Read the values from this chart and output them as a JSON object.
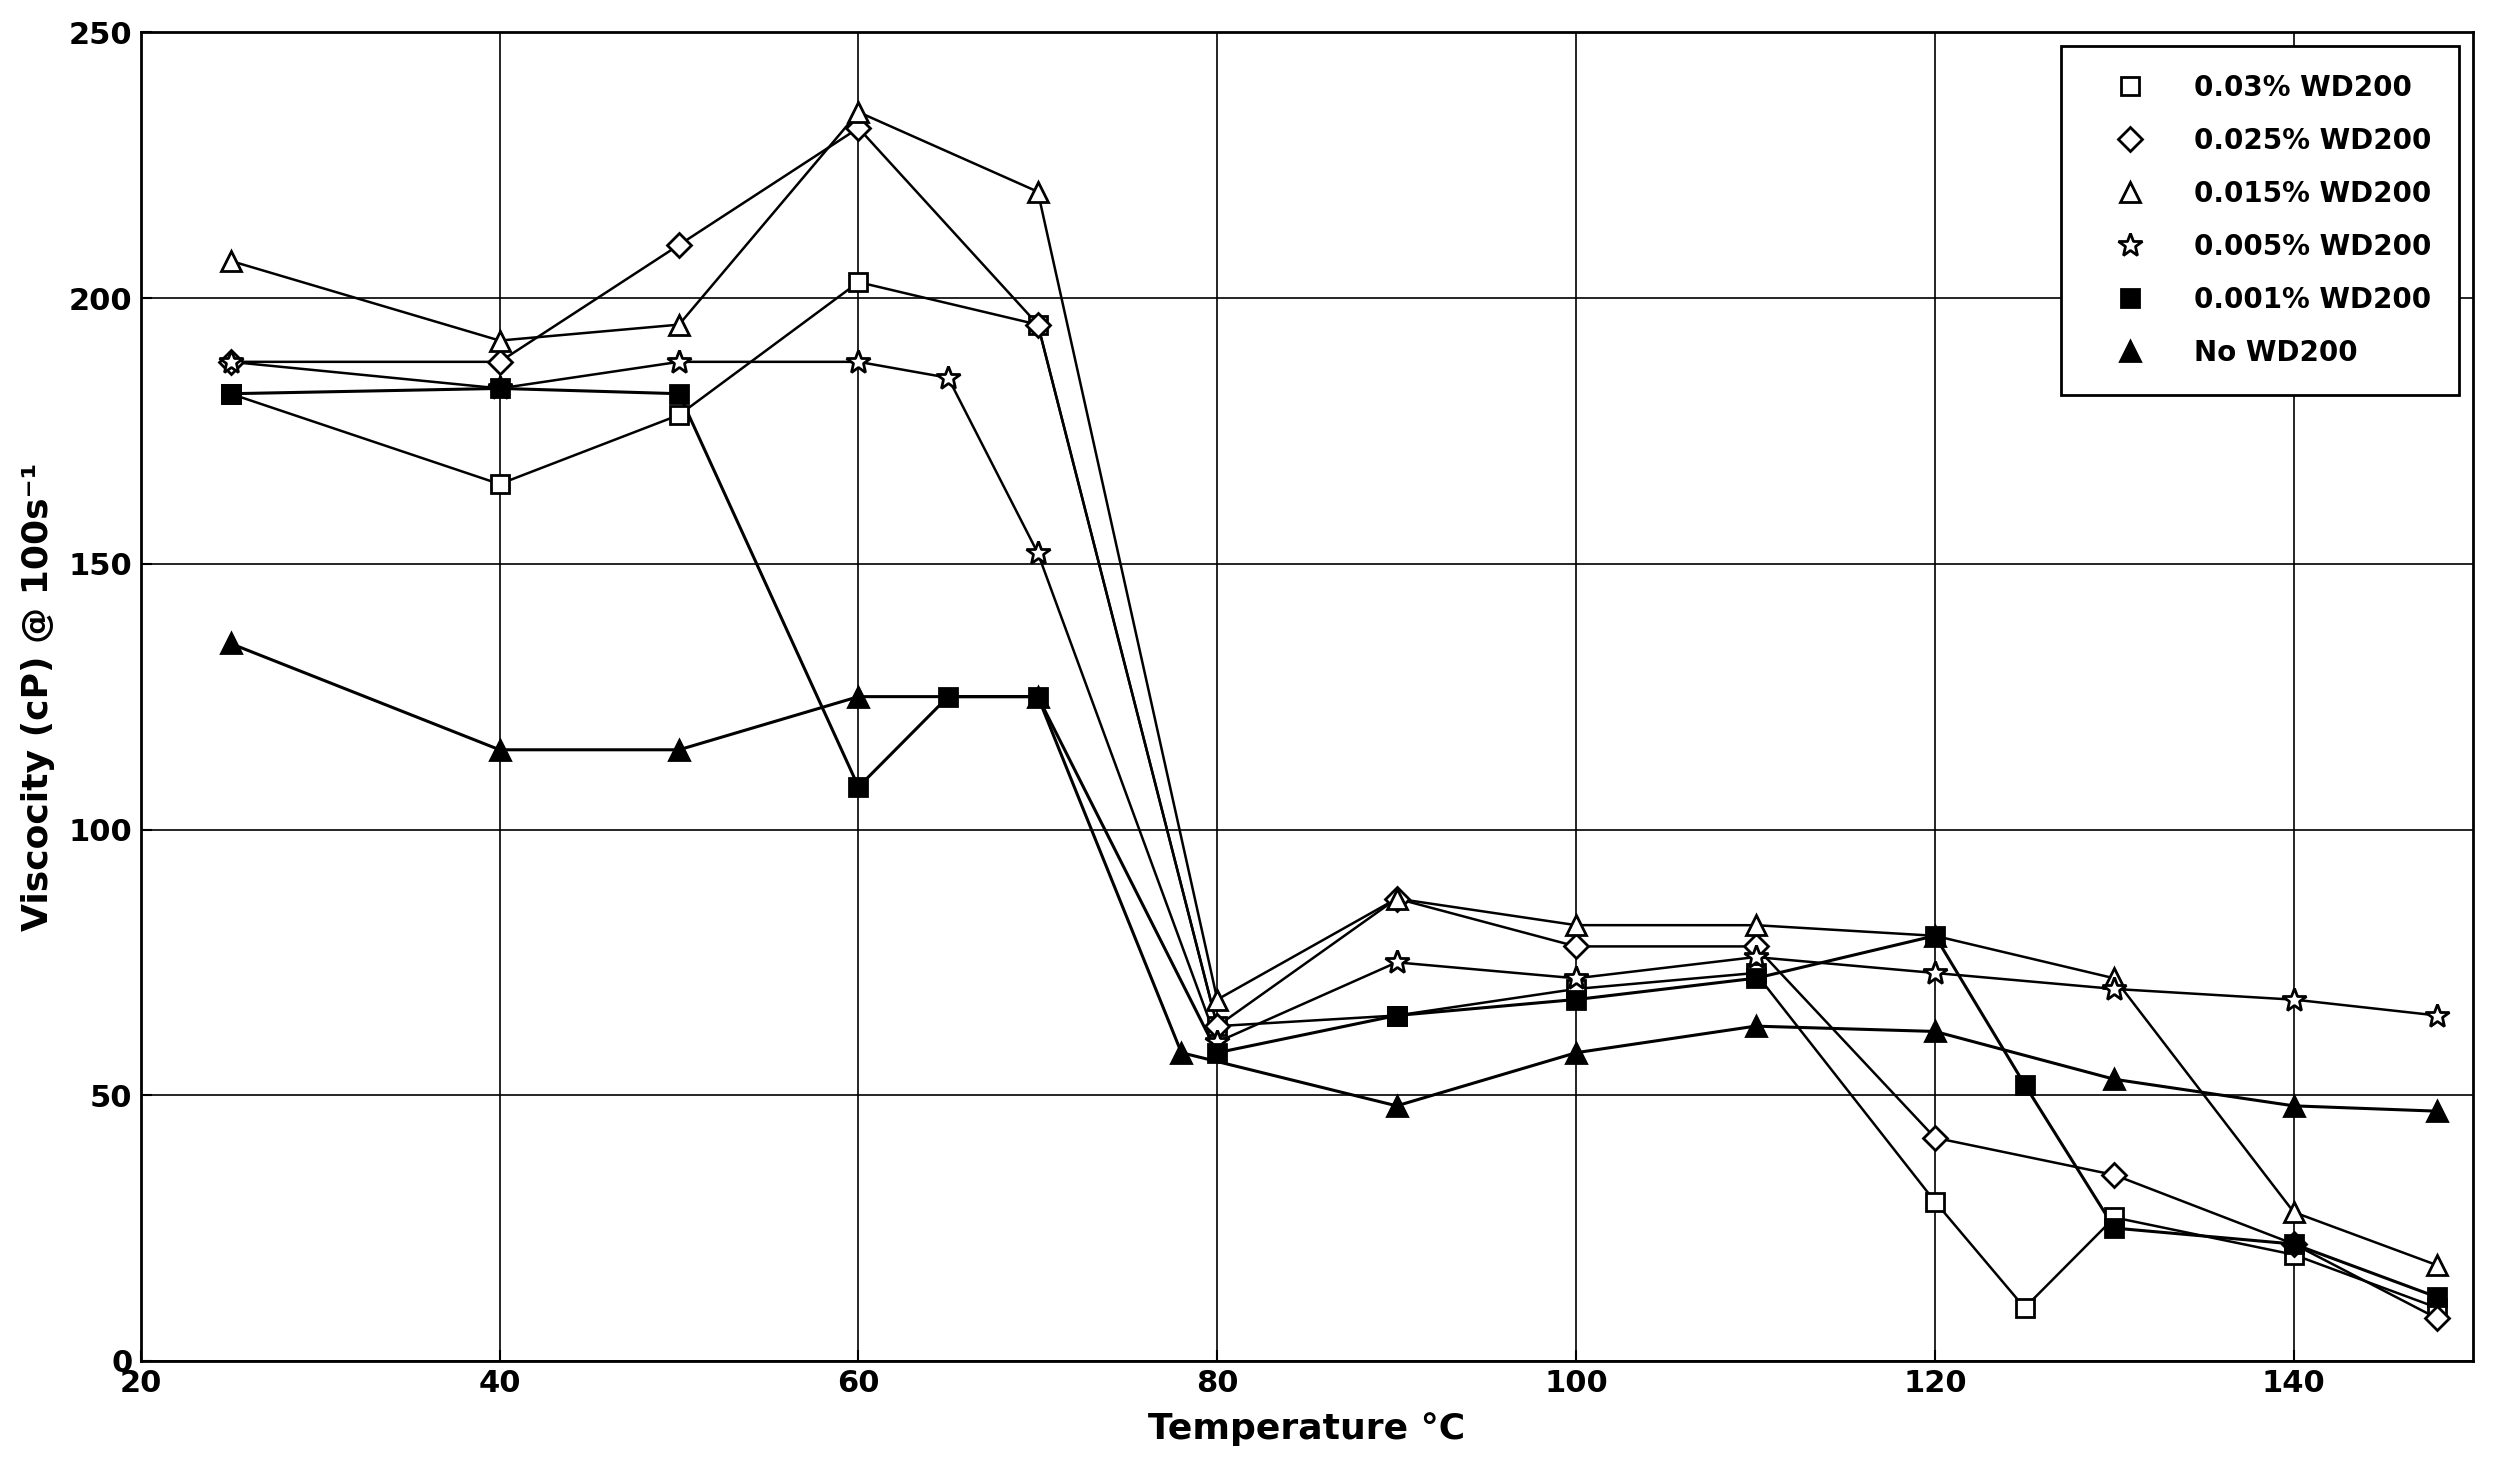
{
  "series": [
    {
      "label": "0.03% WD200",
      "marker": "s",
      "filled": false,
      "linewidth": 1.8,
      "x": [
        25,
        40,
        50,
        60,
        70,
        80,
        90,
        100,
        110,
        120,
        125,
        130,
        140,
        148
      ],
      "y": [
        182,
        165,
        178,
        203,
        195,
        63,
        65,
        70,
        73,
        30,
        10,
        27,
        20,
        10
      ]
    },
    {
      "label": "0.025% WD200",
      "marker": "D",
      "filled": false,
      "linewidth": 1.8,
      "x": [
        25,
        40,
        50,
        60,
        70,
        80,
        90,
        100,
        110,
        120,
        130,
        140,
        148
      ],
      "y": [
        188,
        188,
        210,
        232,
        195,
        63,
        87,
        78,
        78,
        42,
        35,
        22,
        8
      ]
    },
    {
      "label": "0.015% WD200",
      "marker": "^",
      "filled": false,
      "linewidth": 1.8,
      "x": [
        25,
        40,
        50,
        60,
        70,
        80,
        90,
        100,
        110,
        120,
        130,
        140,
        148
      ],
      "y": [
        207,
        192,
        195,
        235,
        220,
        68,
        87,
        82,
        82,
        80,
        72,
        28,
        18
      ]
    },
    {
      "label": "0.005% WD200",
      "marker": "*",
      "filled": false,
      "linewidth": 1.8,
      "x": [
        25,
        40,
        50,
        60,
        65,
        70,
        80,
        90,
        100,
        110,
        120,
        130,
        140,
        148
      ],
      "y": [
        188,
        183,
        188,
        188,
        185,
        152,
        60,
        75,
        72,
        76,
        73,
        70,
        68,
        65
      ]
    },
    {
      "label": "0.001% WD200",
      "marker": "s",
      "filled": true,
      "linewidth": 2.2,
      "x": [
        25,
        40,
        50,
        60,
        65,
        70,
        80,
        90,
        100,
        110,
        120,
        125,
        130,
        140,
        148
      ],
      "y": [
        182,
        183,
        182,
        108,
        125,
        125,
        58,
        65,
        68,
        72,
        80,
        52,
        25,
        22,
        12
      ]
    },
    {
      "label": "No WD200",
      "marker": "^",
      "filled": true,
      "linewidth": 2.2,
      "x": [
        25,
        40,
        50,
        60,
        70,
        78,
        90,
        100,
        110,
        120,
        130,
        140,
        148
      ],
      "y": [
        135,
        115,
        115,
        125,
        125,
        58,
        48,
        58,
        63,
        62,
        53,
        48,
        47
      ]
    }
  ],
  "xlabel": "Temperature °C",
  "ylabel": "Viscocity (cP) @ 100s⁻¹",
  "xlim": [
    20,
    150
  ],
  "ylim": [
    0,
    250
  ],
  "xticks": [
    20,
    40,
    60,
    80,
    100,
    120,
    140
  ],
  "yticks": [
    0,
    50,
    100,
    150,
    200,
    250
  ],
  "background_color": "#ffffff",
  "axis_fontsize": 26,
  "tick_fontsize": 22,
  "legend_fontsize": 20
}
